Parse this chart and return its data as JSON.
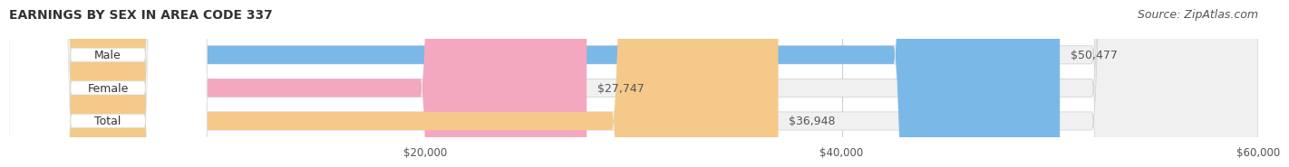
{
  "title": "EARNINGS BY SEX IN AREA CODE 337",
  "source_text": "Source: ZipAtlas.com",
  "categories": [
    "Male",
    "Female",
    "Total"
  ],
  "values": [
    50477,
    27747,
    36948
  ],
  "bar_colors": [
    "#7ab8e8",
    "#f4a8bf",
    "#f5c98a"
  ],
  "bar_bg_color": "#f0f0f0",
  "label_bg_color": "#ffffff",
  "xmin": 0,
  "xmax": 60000,
  "xticks": [
    20000,
    40000,
    60000
  ],
  "xtick_labels": [
    "$20,000",
    "$40,000",
    "$60,000"
  ],
  "title_fontsize": 10,
  "source_fontsize": 9,
  "label_fontsize": 9,
  "value_fontsize": 9,
  "tick_fontsize": 8.5,
  "bar_height": 0.55,
  "bg_color": "#ffffff",
  "text_color": "#555555",
  "title_color": "#333333"
}
